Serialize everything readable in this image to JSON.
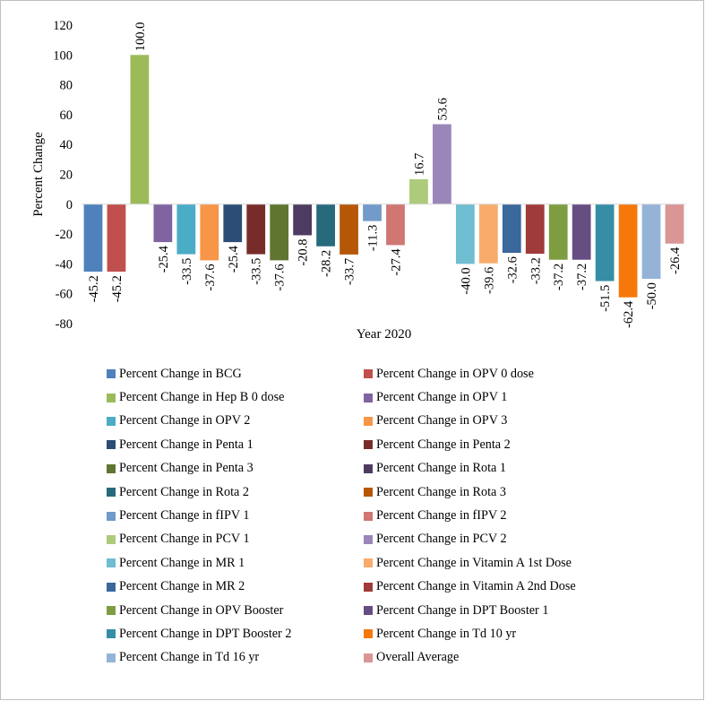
{
  "chart_data": {
    "type": "bar",
    "xlabel": "Year 2020",
    "ylabel": "Percent Change",
    "ylim": [
      -80,
      120
    ],
    "yticks": [
      120,
      100,
      80,
      60,
      40,
      20,
      0,
      -20,
      -40,
      -60,
      -80
    ],
    "grid": false,
    "legend_position": "bottom",
    "series": [
      {
        "name": "Percent Change in BCG",
        "value": -45.2,
        "label": "-45.2",
        "color": "#4F81BD"
      },
      {
        "name": "Percent Change in OPV 0 dose",
        "value": -45.2,
        "label": "-45.2",
        "color": "#C0504D"
      },
      {
        "name": "Percent Change in Hep B 0 dose",
        "value": 100.0,
        "label": "100.0",
        "color": "#9BBB59"
      },
      {
        "name": "Percent Change in OPV 1",
        "value": -25.4,
        "label": "-25.4",
        "color": "#8064A2"
      },
      {
        "name": "Percent Change in OPV 2",
        "value": -33.5,
        "label": "-33.5",
        "color": "#4BACC6"
      },
      {
        "name": "Percent Change in OPV 3",
        "value": -37.6,
        "label": "-37.6",
        "color": "#F79646"
      },
      {
        "name": "Percent Change in Penta 1",
        "value": -25.4,
        "label": "-25.4",
        "color": "#2C4D75"
      },
      {
        "name": "Percent Change in Penta 2",
        "value": -33.5,
        "label": "-33.5",
        "color": "#772C2A"
      },
      {
        "name": "Percent Change in Penta 3",
        "value": -37.6,
        "label": "-37.6",
        "color": "#5F7530"
      },
      {
        "name": "Percent Change in Rota 1",
        "value": -20.8,
        "label": "-20.8",
        "color": "#4D3B62"
      },
      {
        "name": "Percent Change in Rota 2",
        "value": -28.2,
        "label": "-28.2",
        "color": "#276A7C"
      },
      {
        "name": "Percent Change in Rota 3",
        "value": -33.7,
        "label": "-33.7",
        "color": "#B65708"
      },
      {
        "name": "Percent Change in fIPV 1",
        "value": -11.3,
        "label": "-11.3",
        "color": "#729ACA"
      },
      {
        "name": "Percent Change in fIPV 2",
        "value": -27.4,
        "label": "-27.4",
        "color": "#D07673"
      },
      {
        "name": "Percent Change in PCV 1",
        "value": 16.7,
        "label": "16.7",
        "color": "#ADCB7A"
      },
      {
        "name": "Percent Change in PCV 2",
        "value": 53.6,
        "label": "53.6",
        "color": "#9A86B8"
      },
      {
        "name": "Percent Change in MR 1",
        "value": -40.0,
        "label": "-40.0",
        "color": "#6FBDD1"
      },
      {
        "name": "Percent Change in Vitamin A 1st Dose",
        "value": -39.6,
        "label": "-39.6",
        "color": "#F9AB6B"
      },
      {
        "name": "Percent Change in MR 2",
        "value": -32.6,
        "label": "-32.6",
        "color": "#3A679C"
      },
      {
        "name": "Percent Change in Vitamin A 2nd Dose",
        "value": -33.2,
        "label": "-33.2",
        "color": "#9F3B38"
      },
      {
        "name": "Percent Change in OPV Booster",
        "value": -37.2,
        "label": "-37.2",
        "color": "#7E9D40"
      },
      {
        "name": "Percent Change in DPT Booster 1",
        "value": -37.2,
        "label": "-37.2",
        "color": "#674E82"
      },
      {
        "name": "Percent Change in DPT Booster 2",
        "value": -51.5,
        "label": "-51.5",
        "color": "#358EA6"
      },
      {
        "name": "Percent Change in Td 10 yr",
        "value": -62.4,
        "label": "-62.4",
        "color": "#F6780B"
      },
      {
        "name": "Percent Change in Td 16 yr",
        "value": -50.0,
        "label": "-50.0",
        "color": "#95B3D7"
      },
      {
        "name": "Overall Average",
        "value": -26.4,
        "label": "-26.4",
        "color": "#D99694"
      }
    ]
  }
}
